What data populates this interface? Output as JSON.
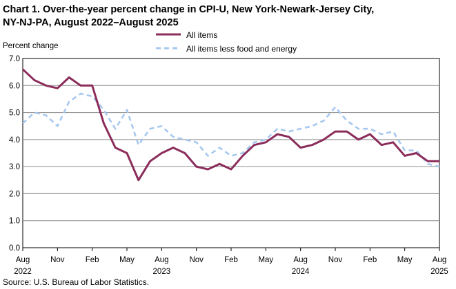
{
  "chart_data": {
    "type": "line",
    "title_line1": "Chart 1. Over-the-year percent change in CPI-U, New York-Newark-Jersey City,",
    "title_line2": "NY-NJ-PA, August 2022–August 2025",
    "ylabel": "Percent change",
    "xlabel": "",
    "ylim": [
      0,
      7
    ],
    "y_ticks": [
      "0.0",
      "1.0",
      "2.0",
      "3.0",
      "4.0",
      "5.0",
      "6.0",
      "7.0"
    ],
    "y_tick_values": [
      0,
      1,
      2,
      3,
      4,
      5,
      6,
      7
    ],
    "grid": true,
    "legend_position": "top-center",
    "x_tick_months": [
      "Aug",
      "Nov",
      "Feb",
      "May",
      "Aug",
      "Nov",
      "Feb",
      "May",
      "Aug",
      "Nov",
      "Feb",
      "May",
      "Aug"
    ],
    "x_tick_years": [
      "2022",
      "2023",
      "2024",
      "2025"
    ],
    "x_tick_year_positions": [
      0,
      12,
      24,
      36
    ],
    "months": [
      "Aug 2022",
      "Sep 2022",
      "Oct 2022",
      "Nov 2022",
      "Dec 2022",
      "Jan 2023",
      "Feb 2023",
      "Mar 2023",
      "Apr 2023",
      "May 2023",
      "Jun 2023",
      "Jul 2023",
      "Aug 2023",
      "Sep 2023",
      "Oct 2023",
      "Nov 2023",
      "Dec 2023",
      "Jan 2024",
      "Feb 2024",
      "Mar 2024",
      "Apr 2024",
      "May 2024",
      "Jun 2024",
      "Jul 2024",
      "Aug 2024",
      "Sep 2024",
      "Oct 2024",
      "Nov 2024",
      "Dec 2024",
      "Jan 2025",
      "Feb 2025",
      "Mar 2025",
      "Apr 2025",
      "May 2025",
      "Jun 2025",
      "Jul 2025",
      "Aug 2025"
    ],
    "series": [
      {
        "name": "All items",
        "color": "#8B2C5A",
        "style": "solid",
        "values": [
          6.6,
          6.2,
          6.0,
          5.9,
          6.3,
          6.0,
          6.0,
          4.6,
          3.7,
          3.5,
          2.5,
          3.2,
          3.5,
          3.7,
          3.5,
          3.0,
          2.9,
          3.1,
          2.9,
          3.4,
          3.8,
          3.9,
          4.2,
          4.1,
          3.7,
          3.8,
          4.0,
          4.3,
          4.3,
          4.0,
          4.2,
          3.8,
          3.9,
          3.4,
          3.5,
          3.2,
          3.2
        ]
      },
      {
        "name": "All items less food and energy",
        "color": "#A6C8F0",
        "style": "dashed",
        "values": [
          4.6,
          5.0,
          4.9,
          4.5,
          5.4,
          5.7,
          5.6,
          5.1,
          4.4,
          5.1,
          3.8,
          4.4,
          4.5,
          4.1,
          4.0,
          3.9,
          3.4,
          3.7,
          3.4,
          3.5,
          3.9,
          4.0,
          4.4,
          4.3,
          4.4,
          4.5,
          4.7,
          5.2,
          4.7,
          4.4,
          4.4,
          4.2,
          4.3,
          3.6,
          3.6,
          3.1,
          3.0
        ]
      }
    ]
  },
  "source": "Source: U.S. Bureau  of Labor Statistics."
}
